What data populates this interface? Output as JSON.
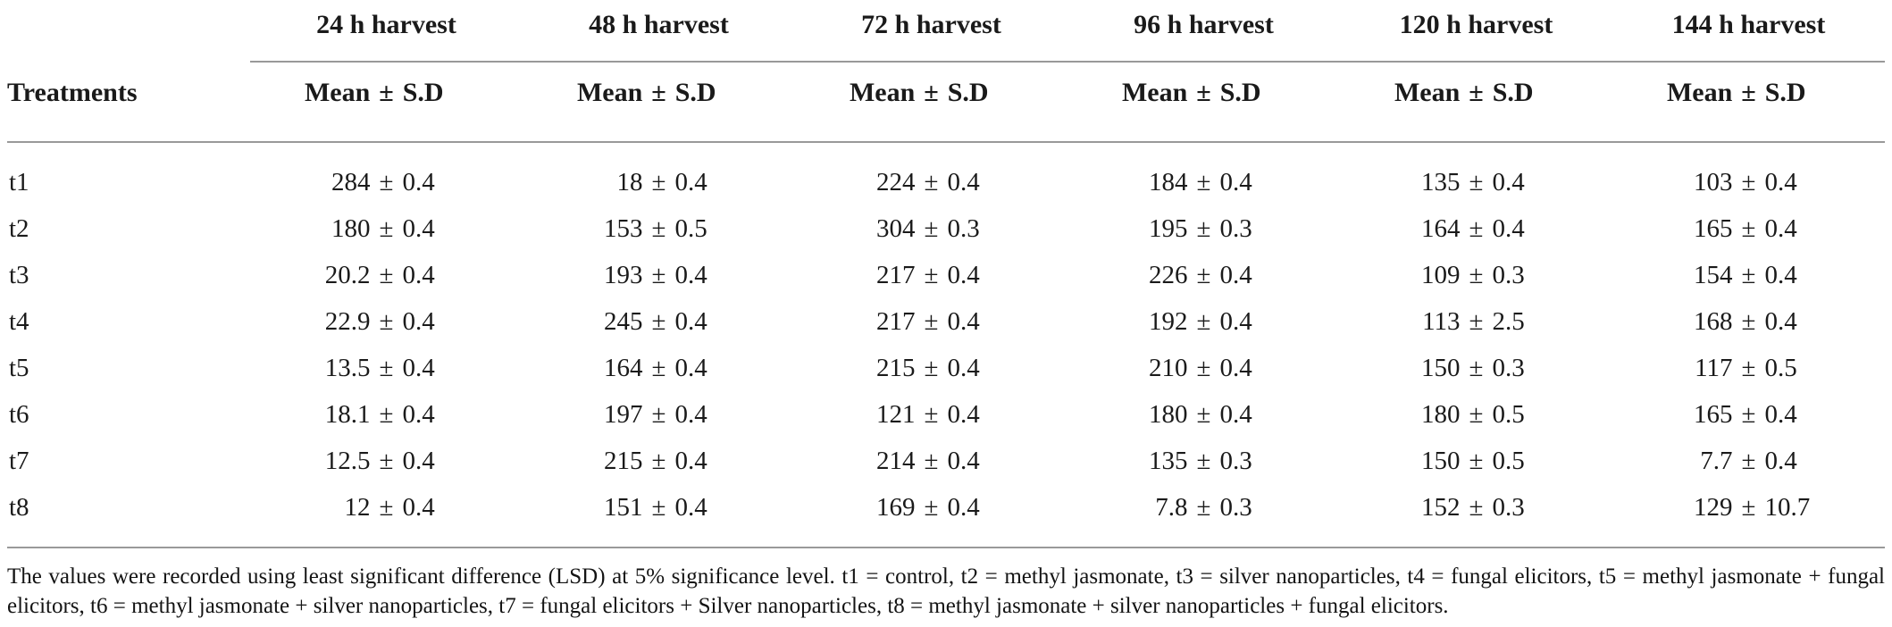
{
  "page": {
    "background": "#ffffff",
    "text_color": "#1a1a1a",
    "rule_color": "#999999"
  },
  "table": {
    "row_header_label": "Treatments",
    "group_headers": [
      "24 h harvest",
      "48 h harvest",
      "72 h harvest",
      "96 h harvest",
      "120 h harvest",
      "144 h harvest"
    ],
    "value_header": {
      "mean": "Mean",
      "pm": "±",
      "sd": "S.D"
    },
    "pm": "±",
    "rows": [
      {
        "treatment": "t1",
        "values": [
          {
            "mean": "284",
            "sd": "0.4"
          },
          {
            "mean": "18",
            "sd": "0.4"
          },
          {
            "mean": "224",
            "sd": "0.4"
          },
          {
            "mean": "184",
            "sd": "0.4"
          },
          {
            "mean": "135",
            "sd": "0.4"
          },
          {
            "mean": "103",
            "sd": "0.4"
          }
        ]
      },
      {
        "treatment": "t2",
        "values": [
          {
            "mean": "180",
            "sd": "0.4"
          },
          {
            "mean": "153",
            "sd": "0.5"
          },
          {
            "mean": "304",
            "sd": "0.3"
          },
          {
            "mean": "195",
            "sd": "0.3"
          },
          {
            "mean": "164",
            "sd": "0.4"
          },
          {
            "mean": "165",
            "sd": "0.4"
          }
        ]
      },
      {
        "treatment": "t3",
        "values": [
          {
            "mean": "20.2",
            "sd": "0.4"
          },
          {
            "mean": "193",
            "sd": "0.4"
          },
          {
            "mean": "217",
            "sd": "0.4"
          },
          {
            "mean": "226",
            "sd": "0.4"
          },
          {
            "mean": "109",
            "sd": "0.3"
          },
          {
            "mean": "154",
            "sd": "0.4"
          }
        ]
      },
      {
        "treatment": "t4",
        "values": [
          {
            "mean": "22.9",
            "sd": "0.4"
          },
          {
            "mean": "245",
            "sd": "0.4"
          },
          {
            "mean": "217",
            "sd": "0.4"
          },
          {
            "mean": "192",
            "sd": "0.4"
          },
          {
            "mean": "113",
            "sd": "2.5"
          },
          {
            "mean": "168",
            "sd": "0.4"
          }
        ]
      },
      {
        "treatment": "t5",
        "values": [
          {
            "mean": "13.5",
            "sd": "0.4"
          },
          {
            "mean": "164",
            "sd": "0.4"
          },
          {
            "mean": "215",
            "sd": "0.4"
          },
          {
            "mean": "210",
            "sd": "0.4"
          },
          {
            "mean": "150",
            "sd": "0.3"
          },
          {
            "mean": "117",
            "sd": "0.5"
          }
        ]
      },
      {
        "treatment": "t6",
        "values": [
          {
            "mean": "18.1",
            "sd": "0.4"
          },
          {
            "mean": "197",
            "sd": "0.4"
          },
          {
            "mean": "121",
            "sd": "0.4"
          },
          {
            "mean": "180",
            "sd": "0.4"
          },
          {
            "mean": "180",
            "sd": "0.5"
          },
          {
            "mean": "165",
            "sd": "0.4"
          }
        ]
      },
      {
        "treatment": "t7",
        "values": [
          {
            "mean": "12.5",
            "sd": "0.4"
          },
          {
            "mean": "215",
            "sd": "0.4"
          },
          {
            "mean": "214",
            "sd": "0.4"
          },
          {
            "mean": "135",
            "sd": "0.3"
          },
          {
            "mean": "150",
            "sd": "0.5"
          },
          {
            "mean": "7.7",
            "sd": "0.4"
          }
        ]
      },
      {
        "treatment": "t8",
        "values": [
          {
            "mean": "12",
            "sd": "0.4"
          },
          {
            "mean": "151",
            "sd": "0.4"
          },
          {
            "mean": "169",
            "sd": "0.4"
          },
          {
            "mean": "7.8",
            "sd": "0.3"
          },
          {
            "mean": "152",
            "sd": "0.3"
          },
          {
            "mean": "129",
            "sd": "10.7"
          }
        ]
      }
    ]
  },
  "footnote": "The values were recorded using least significant difference (LSD) at 5% significance level. t1 = control, t2 = methyl jasmonate, t3 = silver nanoparticles, t4 = fungal elicitors, t5 = methyl jasmonate + fungal elicitors, t6 = methyl jasmonate + silver nanoparticles, t7 = fungal elicitors + Silver nanoparticles, t8 = methyl jasmonate + silver nanoparticles + fungal elicitors."
}
